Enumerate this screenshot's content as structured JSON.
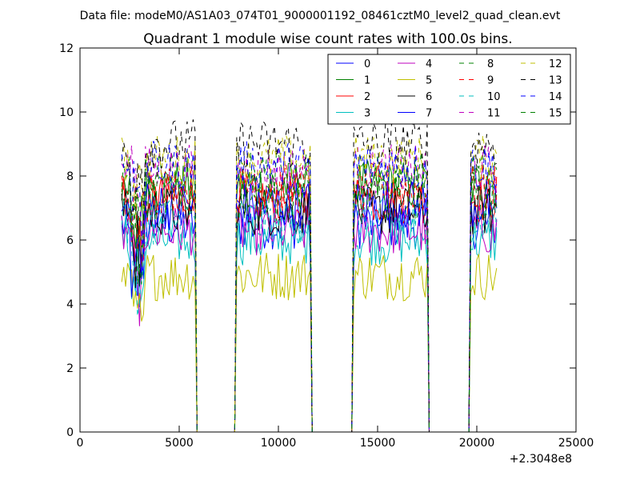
{
  "header": {
    "data_file": "Data file: modeM0/AS1A03_074T01_9000001192_08461cztM0_level2_quad_clean.evt"
  },
  "chart_data": {
    "type": "line",
    "title": "Quadrant 1 module wise count rates with 100.0s bins.",
    "xlabel": "",
    "ylabel": "",
    "xlim": [
      0,
      25000
    ],
    "ylim": [
      0,
      12
    ],
    "x_ticks": [
      0,
      5000,
      10000,
      15000,
      20000,
      25000
    ],
    "x_tick_labels": [
      "0",
      "5000",
      "10000",
      "15000",
      "20000",
      "25000"
    ],
    "y_ticks": [
      0,
      2,
      4,
      6,
      8,
      10,
      12
    ],
    "y_tick_labels": [
      "0",
      "2",
      "4",
      "6",
      "8",
      "10",
      "12"
    ],
    "x_offset_label": "+2.3048e8",
    "grid": false,
    "legend_position": "top-right",
    "bin_width_s": 100,
    "segments": [
      {
        "start": 2100,
        "end": 5800
      },
      {
        "start": 7900,
        "end": 11600
      },
      {
        "start": 13800,
        "end": 17500
      },
      {
        "start": 19700,
        "end": 21000
      }
    ],
    "series": [
      {
        "name": "0",
        "color": "#0000ff",
        "dash": "solid",
        "level": 6.5
      },
      {
        "name": "1",
        "color": "#008000",
        "dash": "solid",
        "level": 7.7
      },
      {
        "name": "2",
        "color": "#ff0000",
        "dash": "solid",
        "level": 7.3
      },
      {
        "name": "3",
        "color": "#00bfbf",
        "dash": "solid",
        "level": 6.0
      },
      {
        "name": "4",
        "color": "#bf00bf",
        "dash": "solid",
        "level": 6.3
      },
      {
        "name": "5",
        "color": "#bfbf00",
        "dash": "solid",
        "level": 4.9
      },
      {
        "name": "6",
        "color": "#000000",
        "dash": "solid",
        "level": 6.9
      },
      {
        "name": "7",
        "color": "#0000ff",
        "dash": "solid",
        "level": 7.1
      },
      {
        "name": "8",
        "color": "#008000",
        "dash": "dashed",
        "level": 8.0
      },
      {
        "name": "9",
        "color": "#ff0000",
        "dash": "dashed",
        "level": 7.6
      },
      {
        "name": "10",
        "color": "#00bfbf",
        "dash": "dashed",
        "level": 6.6
      },
      {
        "name": "11",
        "color": "#bf00bf",
        "dash": "dashed",
        "level": 8.2
      },
      {
        "name": "12",
        "color": "#bfbf00",
        "dash": "dashed",
        "level": 8.5
      },
      {
        "name": "13",
        "color": "#000000",
        "dash": "dashed",
        "level": 9.0
      },
      {
        "name": "14",
        "color": "#0000ff",
        "dash": "dashed",
        "level": 8.3
      },
      {
        "name": "15",
        "color": "#008000",
        "dash": "dashed",
        "level": 7.4
      }
    ]
  }
}
